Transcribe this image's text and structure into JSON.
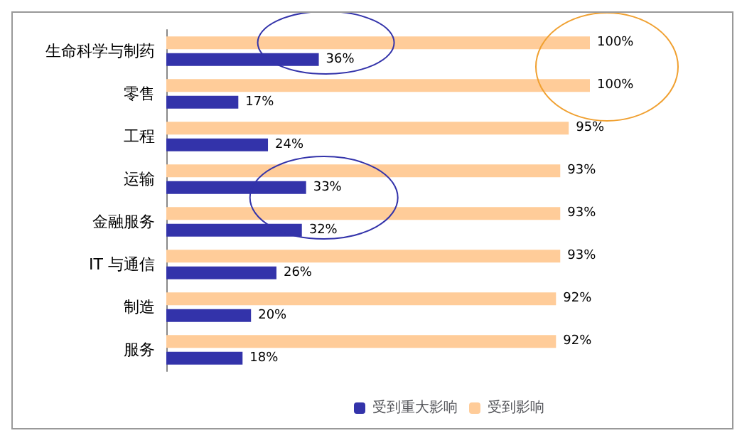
{
  "chart_data": {
    "type": "bar",
    "orientation": "horizontal",
    "categories": [
      "生命科学与制药",
      "零售",
      "工程",
      "运输",
      "金融服务",
      "IT 与通信",
      "制造",
      "服务"
    ],
    "series": [
      {
        "name": "受到重大影响",
        "color": "#3333aa",
        "values": [
          36,
          17,
          24,
          33,
          32,
          26,
          20,
          18
        ],
        "value_labels": [
          "36%",
          "17%",
          "24%",
          "33%",
          "32%",
          "26%",
          "20%",
          "18%"
        ]
      },
      {
        "name": "受到影响",
        "color": "#ffcc99",
        "values": [
          100,
          100,
          95,
          93,
          93,
          93,
          92,
          92
        ],
        "value_labels": [
          "100%",
          "100%",
          "95%",
          "93%",
          "93%",
          "93%",
          "92%",
          "92%"
        ]
      }
    ],
    "legend": "bottom",
    "grid": false,
    "tick_labels": "y"
  }
}
